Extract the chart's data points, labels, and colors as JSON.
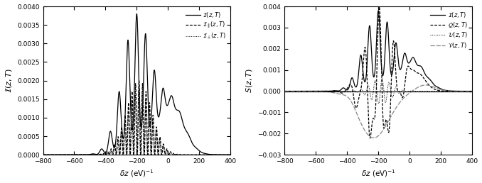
{
  "xlim": [
    -800,
    400
  ],
  "ylim_left": [
    0,
    0.004
  ],
  "ylim_right": [
    -0.003,
    0.004
  ],
  "xticks": [
    -800,
    -600,
    -400,
    -200,
    0,
    200,
    400
  ],
  "yticks_left": [
    0,
    0.0005,
    0.001,
    0.0015,
    0.002,
    0.0025,
    0.003,
    0.0035,
    0.004
  ],
  "yticks_right": [
    -0.003,
    -0.002,
    -0.001,
    0,
    0.001,
    0.002,
    0.003,
    0.004
  ],
  "background_color": "#ffffff"
}
